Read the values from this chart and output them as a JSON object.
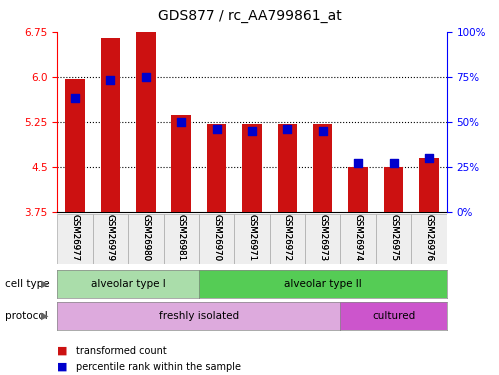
{
  "title": "GDS877 / rc_AA799861_at",
  "samples": [
    "GSM26977",
    "GSM26979",
    "GSM26980",
    "GSM26981",
    "GSM26970",
    "GSM26971",
    "GSM26972",
    "GSM26973",
    "GSM26974",
    "GSM26975",
    "GSM26976"
  ],
  "bar_values": [
    5.97,
    6.65,
    6.75,
    5.37,
    5.22,
    5.21,
    5.22,
    5.21,
    4.5,
    4.5,
    4.65
  ],
  "bar_bottom": 3.75,
  "bar_color": "#cc1111",
  "percentile_values": [
    63,
    73,
    75,
    50,
    46,
    45,
    46,
    45,
    27,
    27,
    30
  ],
  "dot_color": "#0000cc",
  "ylim_left": [
    3.75,
    6.75
  ],
  "yticks_left": [
    3.75,
    4.5,
    5.25,
    6.0,
    6.75
  ],
  "ylim_right": [
    0,
    100
  ],
  "yticks_right": [
    0,
    25,
    50,
    75,
    100
  ],
  "ytick_labels_right": [
    "0%",
    "25%",
    "50%",
    "75%",
    "100%"
  ],
  "gridlines": [
    4.5,
    5.25,
    6.0
  ],
  "cell_type_groups": [
    {
      "label": "alveolar type I",
      "start": 0,
      "end": 3,
      "color": "#aaddaa"
    },
    {
      "label": "alveolar type II",
      "start": 4,
      "end": 10,
      "color": "#55cc55"
    }
  ],
  "protocol_groups": [
    {
      "label": "freshly isolated",
      "start": 0,
      "end": 7,
      "color": "#ddaadd"
    },
    {
      "label": "cultured",
      "start": 8,
      "end": 10,
      "color": "#cc55cc"
    }
  ],
  "cell_type_label": "cell type",
  "protocol_label": "protocol",
  "legend_red_label": "transformed count",
  "legend_blue_label": "percentile rank within the sample",
  "bar_width": 0.55,
  "dot_size": 35
}
